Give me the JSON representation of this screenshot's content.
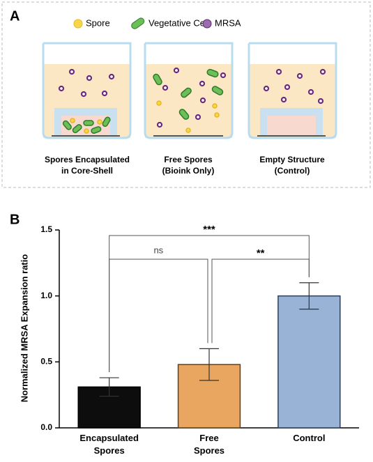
{
  "panel_a": {
    "label": "A",
    "legend": [
      "Spore",
      "Vegetative Cell",
      "MRSA"
    ],
    "conditions": [
      [
        "Spores Encapsulated",
        "in Core-Shell"
      ],
      [
        "Free Spores",
        "(Bioink Only)"
      ],
      [
        "Empty Structure",
        "(Control)"
      ]
    ]
  },
  "panel_b": {
    "label": "B"
  },
  "chart_data": {
    "type": "bar",
    "y_label": "Normalized MRSA Expansion ratio",
    "categories": [
      "Encapsulated Spores",
      "Free Spores",
      "Control"
    ],
    "values": [
      0.31,
      0.48,
      1.0
    ],
    "errors": [
      0.07,
      0.12,
      0.1
    ],
    "colors": [
      "#0d0d0d",
      "#e8a660",
      "#98b3d6"
    ],
    "edge_colors": [
      "#000000",
      "#5a4020",
      "#2b3f5a"
    ],
    "ylim": [
      0,
      1.5
    ],
    "yticks": [
      {
        "value": 0,
        "label": "0.0"
      },
      0.5,
      {
        "value": 1,
        "label": "1.0"
      },
      1.5
    ],
    "significance": [
      {
        "label": "ns",
        "from": 0,
        "to": 1
      },
      {
        "label": "**",
        "from": 1,
        "to": 2
      },
      {
        "label": "***",
        "from": 0,
        "to": 2
      }
    ]
  }
}
